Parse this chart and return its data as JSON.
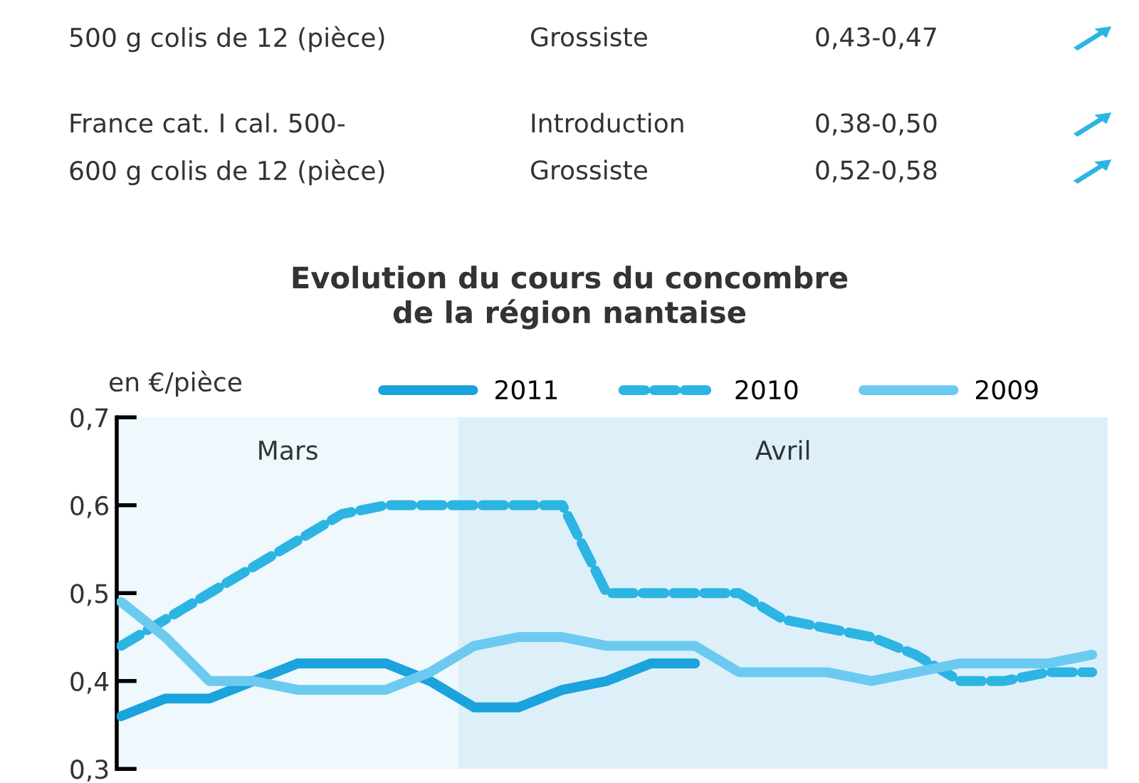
{
  "chart_data": {
    "type": "line",
    "title": "Evolution du cours du concombre\nde la région nantaise",
    "ylabel": "en €/pièce",
    "annotations": [
      "500 g colis de 12 (pièce)",
      "Grossiste",
      "0,43-0,47",
      "France cat. I cal. 500-",
      "Introduction",
      "0,38-0,50",
      "600 g colis de 12 (pièce)",
      "Grossiste",
      "0,52-0,58",
      "Mars",
      "Avril"
    ],
    "categories": [
      null,
      null,
      null,
      null,
      null,
      null,
      null,
      null,
      null,
      null,
      null,
      null,
      null,
      null,
      null,
      null,
      null,
      null,
      null,
      null,
      null,
      null,
      null
    ],
    "series": [
      {
        "name": "2011",
        "color": "#1aa3dc",
        "line_style": "solid",
        "values": [
          0.36,
          0.38,
          0.38,
          0.4,
          0.42,
          0.42,
          0.42,
          0.4,
          0.37,
          0.37,
          0.39,
          0.4,
          0.42,
          0.42,
          null,
          null,
          null,
          null,
          null,
          null,
          null,
          null,
          null
        ]
      },
      {
        "name": "2010",
        "color": "#2cb5e3",
        "line_style": "dashed",
        "values": [
          0.44,
          0.47,
          0.5,
          0.53,
          0.56,
          0.59,
          0.6,
          0.6,
          0.6,
          0.6,
          0.6,
          0.5,
          0.5,
          0.5,
          0.5,
          0.47,
          0.46,
          0.45,
          0.43,
          0.4,
          0.4,
          0.41,
          0.41
        ]
      },
      {
        "name": "2009",
        "color": "#6ccaf0",
        "line_style": "solid",
        "values": [
          0.49,
          0.45,
          0.4,
          0.4,
          0.39,
          0.39,
          0.39,
          0.41,
          0.44,
          0.45,
          0.45,
          0.44,
          0.44,
          0.44,
          0.41,
          0.41,
          0.41,
          0.4,
          0.41,
          0.42,
          0.42,
          0.42,
          0.43
        ]
      }
    ],
    "ylim": [
      0.3,
      0.7
    ],
    "yticks": [
      {
        "value": 0.3,
        "label": "0,3"
      },
      {
        "value": 0.4,
        "label": "0,4"
      },
      {
        "value": 0.5,
        "label": "0,5"
      },
      {
        "value": 0.6,
        "label": "0,6"
      },
      {
        "value": 0.7,
        "label": "0,7"
      }
    ],
    "grid": false,
    "legend": "top",
    "marker": "none"
  }
}
